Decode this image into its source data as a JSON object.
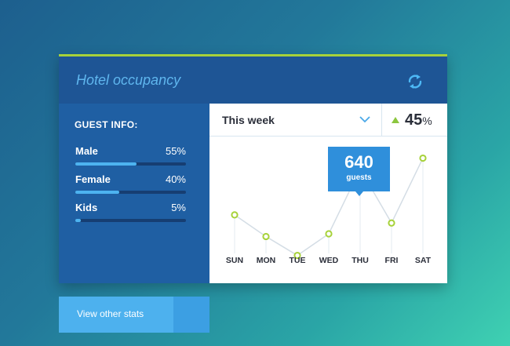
{
  "header": {
    "title": "Hotel occupancy"
  },
  "guest_info": {
    "title": "GUEST INFO:",
    "items": [
      {
        "label": "Male",
        "value": "55%",
        "fraction": 0.55
      },
      {
        "label": "Female",
        "value": "40%",
        "fraction": 0.4
      },
      {
        "label": "Kids",
        "value": "5%",
        "fraction": 0.05
      }
    ]
  },
  "view_button": {
    "label": "View other stats"
  },
  "period_select": {
    "selected": "This week"
  },
  "change": {
    "value": "45",
    "unit": "%",
    "direction": "up"
  },
  "tooltip": {
    "value": "640",
    "unit": "guests"
  },
  "colors": {
    "accent": "#a7d23a",
    "header": "#1e5595",
    "point_highlight": "#2f8fdb"
  },
  "chart_data": {
    "type": "line",
    "categories": [
      "SUN",
      "MON",
      "TUE",
      "WED",
      "THU",
      "FRI",
      "SAT"
    ],
    "values": [
      555,
      515,
      480,
      520,
      640,
      540,
      660
    ],
    "highlight_index": 4,
    "ylim": [
      430,
      700
    ],
    "grid": false
  }
}
